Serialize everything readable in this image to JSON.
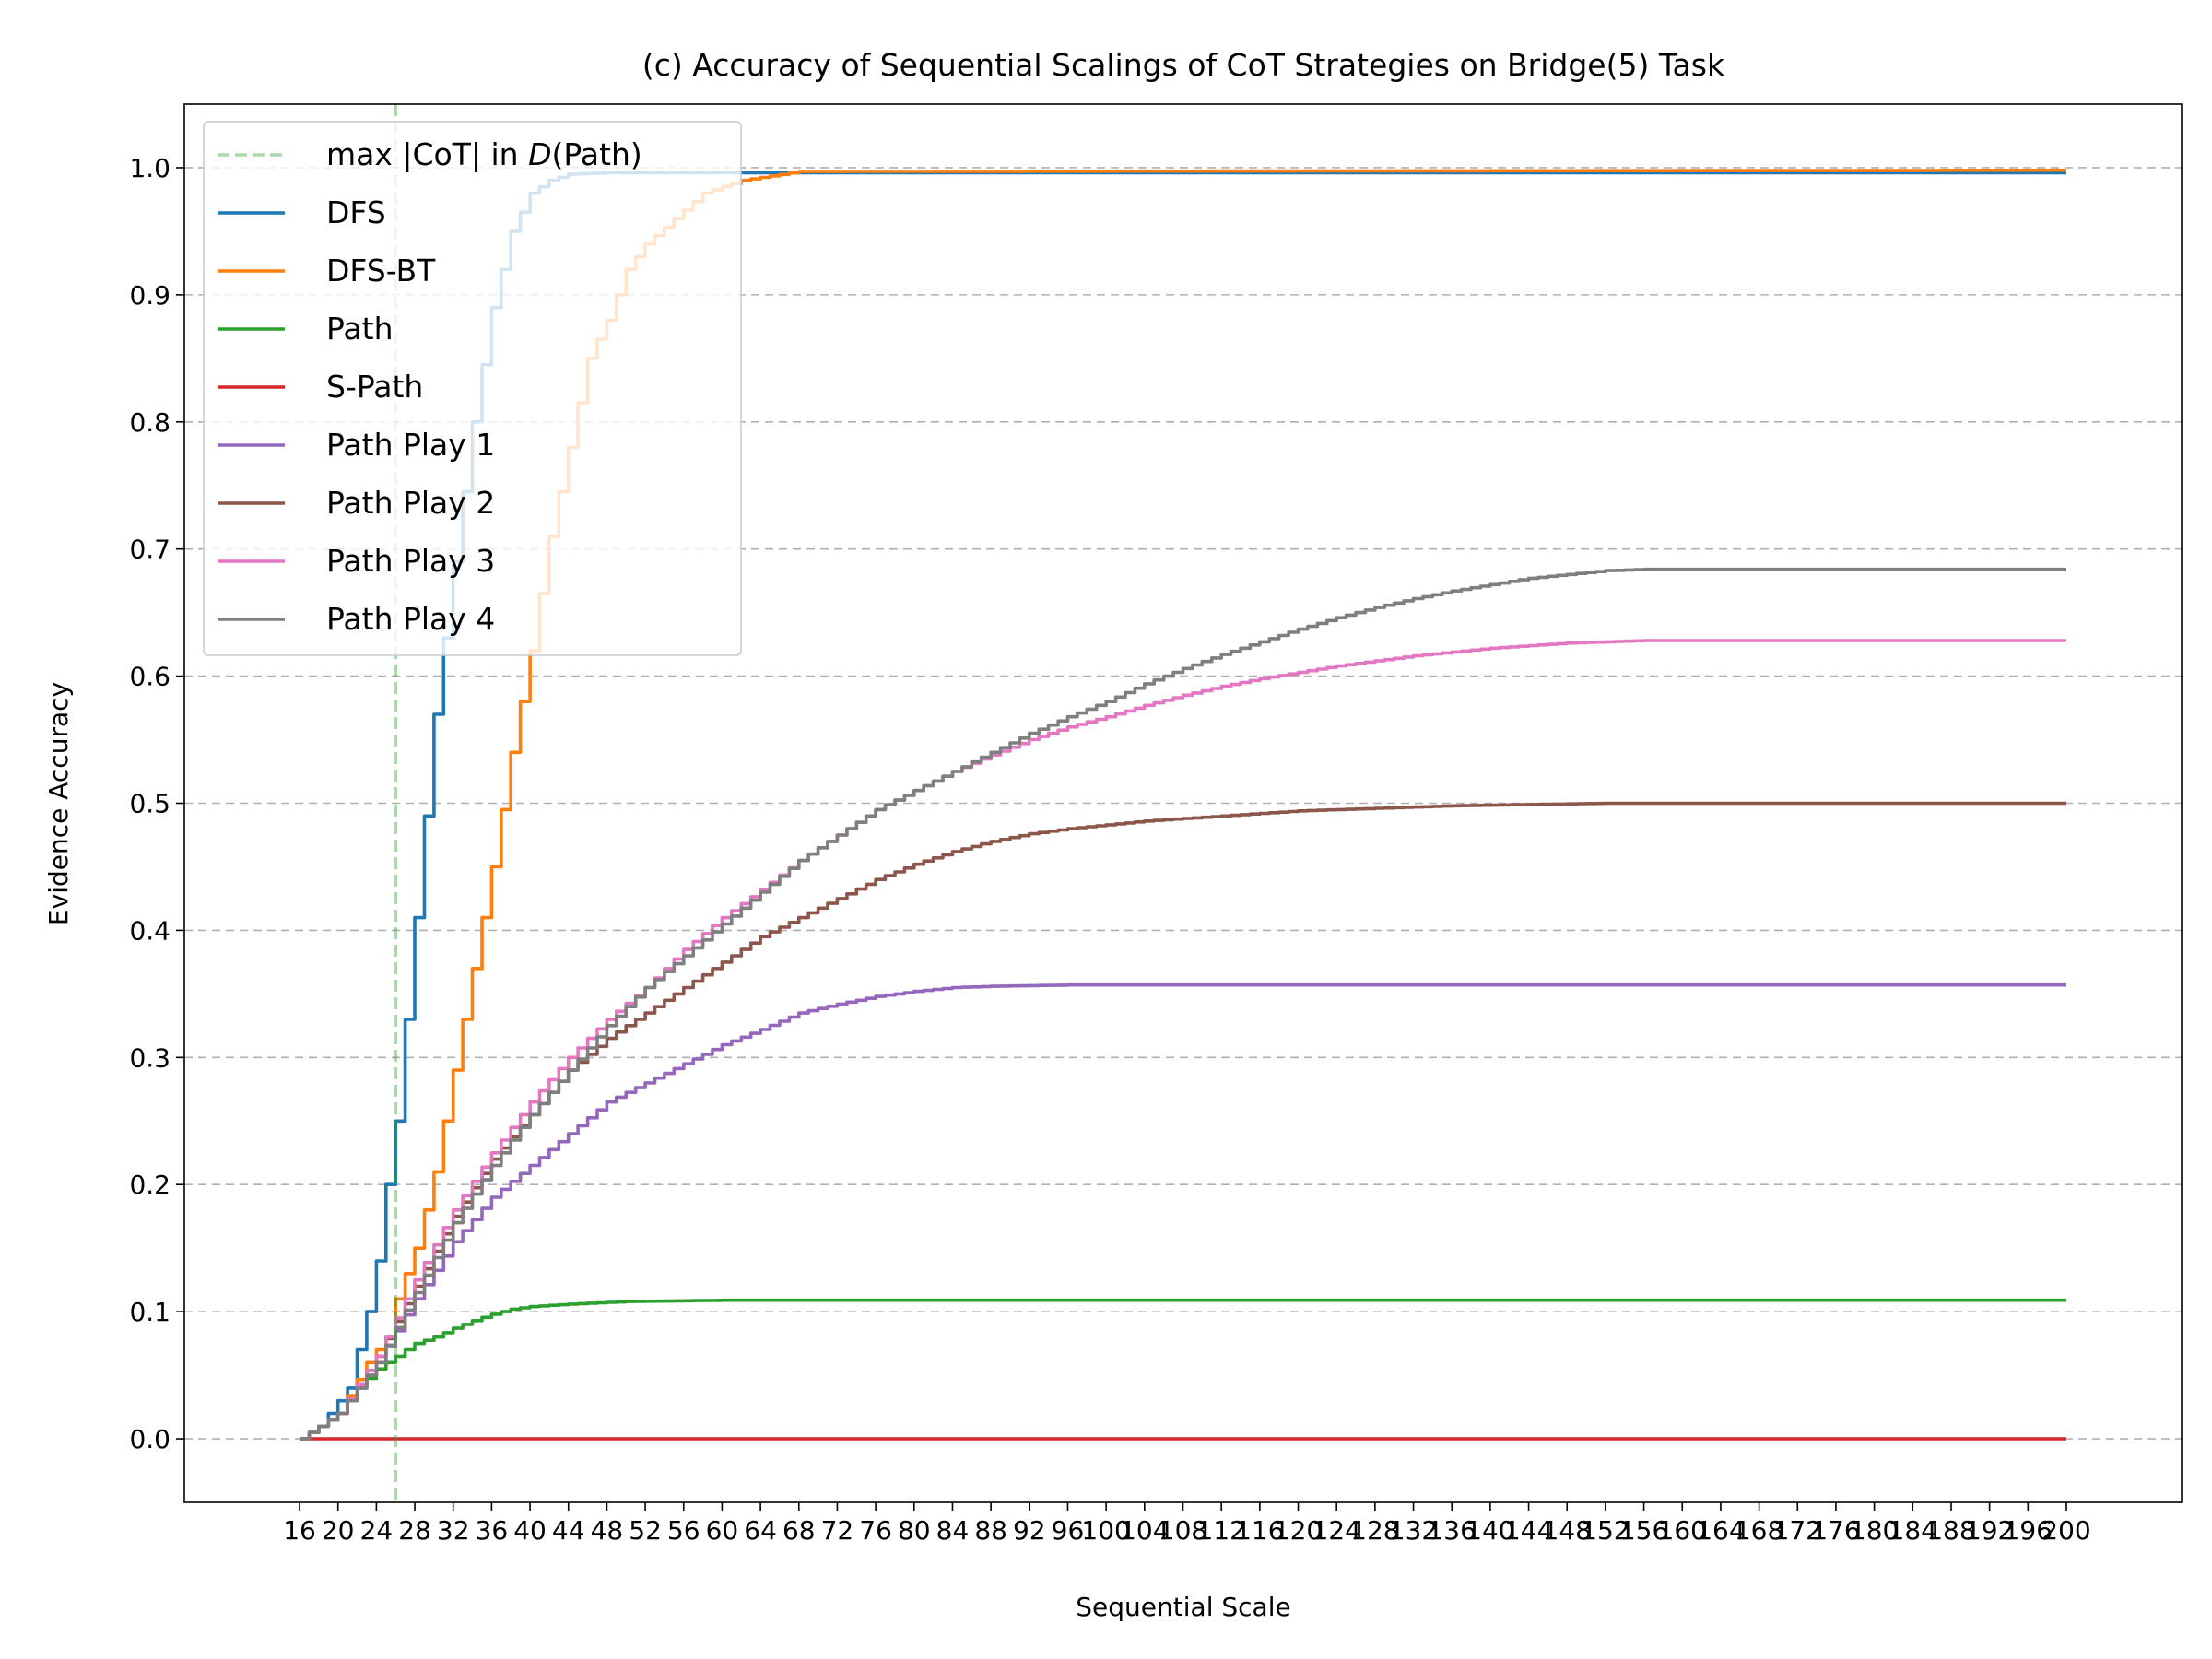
{
  "chart_data": {
    "type": "line",
    "title": "(c) Accuracy of Sequential Scalings of CoT Strategies on Bridge(5) Task",
    "xlabel": "Sequential Scale",
    "ylabel": "Evidence Accuracy",
    "xlim": [
      4,
      212
    ],
    "ylim": [
      -0.05,
      1.05
    ],
    "x_ticks": [
      16,
      20,
      24,
      28,
      32,
      36,
      40,
      44,
      48,
      52,
      56,
      60,
      64,
      68,
      72,
      76,
      80,
      84,
      88,
      92,
      96,
      100,
      104,
      108,
      112,
      116,
      120,
      124,
      128,
      132,
      136,
      140,
      144,
      148,
      152,
      156,
      160,
      164,
      168,
      172,
      176,
      180,
      184,
      188,
      192,
      196,
      200
    ],
    "y_ticks": [
      0.0,
      0.1,
      0.2,
      0.3,
      0.4,
      0.5,
      0.6,
      0.7,
      0.8,
      0.9,
      1.0
    ],
    "y_tick_labels": [
      "0.0",
      "0.1",
      "0.2",
      "0.3",
      "0.4",
      "0.5",
      "0.6",
      "0.7",
      "0.8",
      "0.9",
      "1.0"
    ],
    "grid": "y-dashed",
    "legend_placement": "top-left",
    "reference_line": {
      "type": "vertical-dashed",
      "x": 26,
      "label": "max |CoT| in D(Path)",
      "label_parts": [
        "max |CoT| in ",
        "D",
        "(Path)"
      ],
      "color": "#2ca02c"
    },
    "series": [
      {
        "name": "DFS",
        "color": "#1f77b4",
        "points": [
          [
            16,
            0
          ],
          [
            18,
            0.01
          ],
          [
            20,
            0.03
          ],
          [
            21,
            0.04
          ],
          [
            22,
            0.07
          ],
          [
            23,
            0.1
          ],
          [
            24,
            0.14
          ],
          [
            25,
            0.2
          ],
          [
            26,
            0.25
          ],
          [
            28,
            0.41
          ],
          [
            30,
            0.57
          ],
          [
            32,
            0.69
          ],
          [
            34,
            0.8
          ],
          [
            36,
            0.89
          ],
          [
            38,
            0.95
          ],
          [
            40,
            0.98
          ],
          [
            42,
            0.99
          ],
          [
            44,
            0.995
          ],
          [
            48,
            0.996
          ],
          [
            200,
            0.996
          ]
        ]
      },
      {
        "name": "DFS-BT",
        "color": "#ff7f0e",
        "points": [
          [
            16,
            0
          ],
          [
            20,
            0.02
          ],
          [
            23,
            0.06
          ],
          [
            25,
            0.08
          ],
          [
            26,
            0.11
          ],
          [
            28,
            0.15
          ],
          [
            30,
            0.21
          ],
          [
            32,
            0.29
          ],
          [
            34,
            0.37
          ],
          [
            36,
            0.45
          ],
          [
            38,
            0.54
          ],
          [
            40,
            0.62
          ],
          [
            42,
            0.71
          ],
          [
            44,
            0.78
          ],
          [
            46,
            0.85
          ],
          [
            48,
            0.88
          ],
          [
            50,
            0.92
          ],
          [
            52,
            0.94
          ],
          [
            55,
            0.96
          ],
          [
            58,
            0.98
          ],
          [
            62,
            0.99
          ],
          [
            68,
            0.997
          ],
          [
            200,
            0.998
          ]
        ]
      },
      {
        "name": "Path",
        "color": "#2ca02c",
        "points": [
          [
            16,
            0
          ],
          [
            18,
            0.01
          ],
          [
            20,
            0.02
          ],
          [
            22,
            0.04
          ],
          [
            24,
            0.055
          ],
          [
            26,
            0.065
          ],
          [
            28,
            0.075
          ],
          [
            30,
            0.08
          ],
          [
            32,
            0.087
          ],
          [
            34,
            0.093
          ],
          [
            36,
            0.098
          ],
          [
            38,
            0.102
          ],
          [
            40,
            0.104
          ],
          [
            44,
            0.106
          ],
          [
            50,
            0.108
          ],
          [
            60,
            0.109
          ],
          [
            200,
            0.109
          ]
        ]
      },
      {
        "name": "S-Path",
        "color": "#d62728",
        "points": [
          [
            16,
            0
          ],
          [
            200,
            0
          ]
        ]
      },
      {
        "name": "Path Play 1",
        "color": "#9467bd",
        "points": [
          [
            16,
            0
          ],
          [
            20,
            0.02
          ],
          [
            24,
            0.06
          ],
          [
            28,
            0.11
          ],
          [
            32,
            0.155
          ],
          [
            36,
            0.19
          ],
          [
            40,
            0.215
          ],
          [
            44,
            0.24
          ],
          [
            48,
            0.265
          ],
          [
            52,
            0.28
          ],
          [
            56,
            0.295
          ],
          [
            60,
            0.31
          ],
          [
            64,
            0.322
          ],
          [
            68,
            0.335
          ],
          [
            72,
            0.342
          ],
          [
            76,
            0.348
          ],
          [
            80,
            0.352
          ],
          [
            84,
            0.355
          ],
          [
            88,
            0.356
          ],
          [
            96,
            0.357
          ],
          [
            200,
            0.357
          ]
        ]
      },
      {
        "name": "Path Play 2",
        "color": "#8c564b",
        "points": [
          [
            16,
            0
          ],
          [
            20,
            0.02
          ],
          [
            24,
            0.065
          ],
          [
            28,
            0.12
          ],
          [
            32,
            0.175
          ],
          [
            36,
            0.22
          ],
          [
            40,
            0.255
          ],
          [
            44,
            0.29
          ],
          [
            48,
            0.315
          ],
          [
            52,
            0.335
          ],
          [
            56,
            0.355
          ],
          [
            60,
            0.375
          ],
          [
            64,
            0.395
          ],
          [
            68,
            0.41
          ],
          [
            72,
            0.425
          ],
          [
            76,
            0.44
          ],
          [
            80,
            0.452
          ],
          [
            84,
            0.462
          ],
          [
            88,
            0.47
          ],
          [
            92,
            0.476
          ],
          [
            96,
            0.48
          ],
          [
            104,
            0.486
          ],
          [
            112,
            0.49
          ],
          [
            120,
            0.494
          ],
          [
            128,
            0.496
          ],
          [
            136,
            0.498
          ],
          [
            144,
            0.499
          ],
          [
            152,
            0.5
          ],
          [
            200,
            0.5
          ]
        ]
      },
      {
        "name": "Path Play 3",
        "color": "#e377c2",
        "points": [
          [
            16,
            0
          ],
          [
            20,
            0.02
          ],
          [
            24,
            0.065
          ],
          [
            28,
            0.125
          ],
          [
            32,
            0.18
          ],
          [
            36,
            0.225
          ],
          [
            40,
            0.265
          ],
          [
            44,
            0.3
          ],
          [
            48,
            0.33
          ],
          [
            52,
            0.355
          ],
          [
            56,
            0.385
          ],
          [
            60,
            0.41
          ],
          [
            64,
            0.432
          ],
          [
            68,
            0.455
          ],
          [
            72,
            0.475
          ],
          [
            76,
            0.495
          ],
          [
            80,
            0.51
          ],
          [
            84,
            0.525
          ],
          [
            88,
            0.538
          ],
          [
            92,
            0.55
          ],
          [
            96,
            0.56
          ],
          [
            100,
            0.568
          ],
          [
            104,
            0.577
          ],
          [
            108,
            0.585
          ],
          [
            112,
            0.592
          ],
          [
            116,
            0.598
          ],
          [
            120,
            0.603
          ],
          [
            124,
            0.608
          ],
          [
            128,
            0.612
          ],
          [
            132,
            0.616
          ],
          [
            136,
            0.619
          ],
          [
            140,
            0.622
          ],
          [
            144,
            0.624
          ],
          [
            148,
            0.626
          ],
          [
            152,
            0.627
          ],
          [
            156,
            0.628
          ],
          [
            200,
            0.628
          ]
        ]
      },
      {
        "name": "Path Play 4",
        "color": "#7f7f7f",
        "points": [
          [
            16,
            0
          ],
          [
            20,
            0.02
          ],
          [
            24,
            0.06
          ],
          [
            28,
            0.115
          ],
          [
            32,
            0.17
          ],
          [
            36,
            0.215
          ],
          [
            40,
            0.255
          ],
          [
            44,
            0.29
          ],
          [
            48,
            0.325
          ],
          [
            52,
            0.355
          ],
          [
            56,
            0.38
          ],
          [
            60,
            0.405
          ],
          [
            64,
            0.43
          ],
          [
            68,
            0.455
          ],
          [
            72,
            0.475
          ],
          [
            76,
            0.495
          ],
          [
            80,
            0.51
          ],
          [
            84,
            0.525
          ],
          [
            88,
            0.54
          ],
          [
            92,
            0.555
          ],
          [
            96,
            0.568
          ],
          [
            100,
            0.58
          ],
          [
            104,
            0.594
          ],
          [
            108,
            0.606
          ],
          [
            112,
            0.617
          ],
          [
            116,
            0.627
          ],
          [
            120,
            0.637
          ],
          [
            124,
            0.646
          ],
          [
            128,
            0.654
          ],
          [
            132,
            0.661
          ],
          [
            136,
            0.667
          ],
          [
            140,
            0.672
          ],
          [
            144,
            0.677
          ],
          [
            148,
            0.68
          ],
          [
            152,
            0.683
          ],
          [
            156,
            0.684
          ],
          [
            200,
            0.684
          ]
        ]
      }
    ]
  }
}
